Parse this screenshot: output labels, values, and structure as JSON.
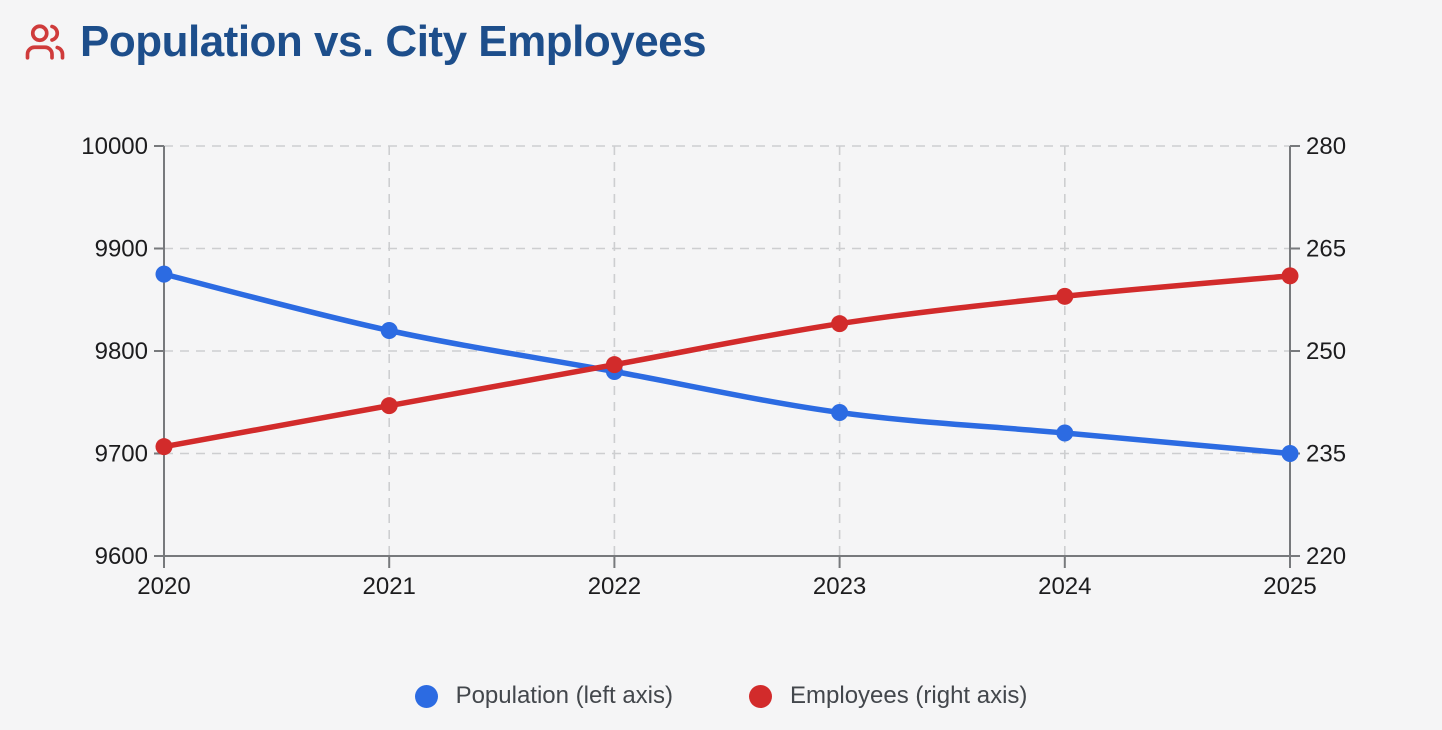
{
  "header": {
    "icon": "users-icon"
  },
  "colors": {
    "background": "#f5f5f6",
    "title_text": "#1d4e8b",
    "icon_red": "#cf3b3b",
    "population_blue": "#2c6be2",
    "employees_red": "#d22b2b",
    "grid_line": "#cdced0",
    "axis_line": "#77797c",
    "tick_text": "#1c1c1e",
    "legend_text": "#43474c"
  },
  "chart_data": {
    "type": "line",
    "title": "Population vs. City Employees",
    "x_ticks": [
      "2020",
      "2021",
      "2022",
      "2023",
      "2024",
      "2025"
    ],
    "series": [
      {
        "name": "Population (left axis)",
        "axis": "left",
        "color": "#2c6be2",
        "values": [
          9875,
          9820,
          9780,
          9740,
          9720,
          9700
        ]
      },
      {
        "name": "Employees (right axis)",
        "axis": "right",
        "color": "#d22b2b",
        "values": [
          236,
          242,
          248,
          254,
          258,
          261
        ]
      }
    ],
    "left_axis": {
      "min": 9600,
      "max": 10000,
      "ticks": [
        9600,
        9700,
        9800,
        9900,
        10000
      ]
    },
    "right_axis": {
      "min": 220,
      "max": 280,
      "ticks": [
        220,
        235,
        250,
        265,
        280
      ]
    },
    "grid": "dashed",
    "curve": "smooth",
    "legend_position": "bottom"
  }
}
